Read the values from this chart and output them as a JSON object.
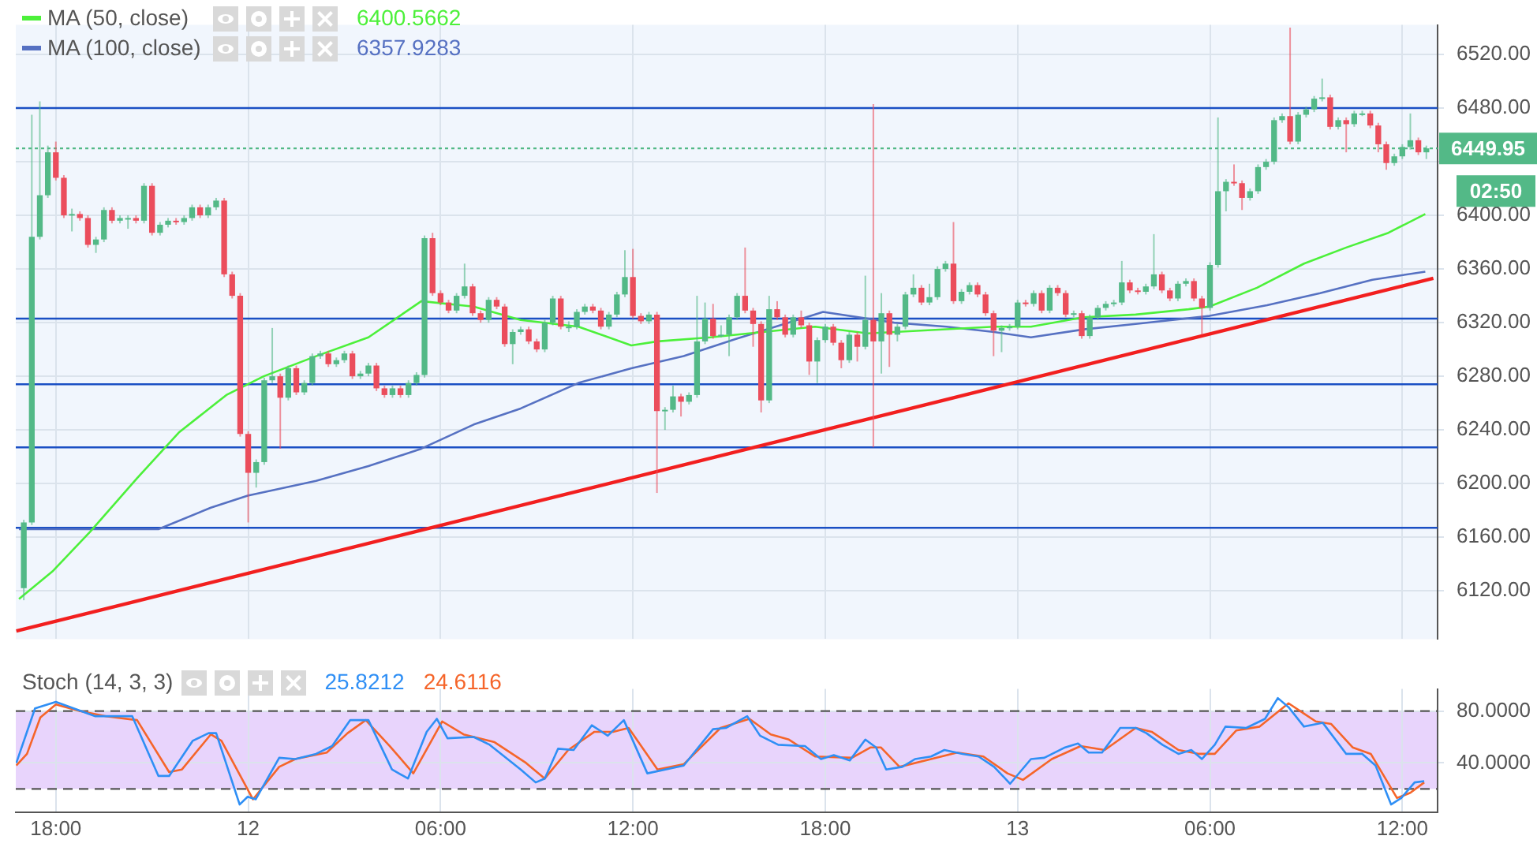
{
  "chart_data": [
    {
      "type": "candlestick",
      "x": [
        "--08-11T17:00",
        "--08-11T17:15",
        "--08-11T17:30",
        "--08-11T17:45",
        "--08-11T18:00",
        "--08-11T18:15",
        "--08-11T18:30",
        "--08-11T18:45",
        "--08-11T19:00",
        "--08-11T19:15",
        "--08-11T19:30",
        "--08-11T19:45",
        "--08-11T20:00",
        "--08-11T20:15",
        "--08-11T20:30",
        "--08-11T20:45",
        "--08-11T21:00",
        "--08-11T21:15",
        "--08-11T21:30",
        "--08-11T21:45",
        "--08-11T22:00",
        "--08-11T22:15",
        "--08-11T22:30",
        "--08-11T22:45",
        "--08-11T23:00",
        "--08-11T23:15",
        "--08-11T23:30",
        "--08-11T23:45",
        "--08-12T00:00",
        "--08-12T00:15",
        "--08-12T00:30",
        "--08-12T00:45",
        "--08-12T01:00",
        "--08-12T01:15",
        "--08-12T01:30",
        "--08-12T01:45",
        "--08-12T02:00",
        "--08-12T02:15",
        "--08-12T02:30",
        "--08-12T02:45",
        "--08-12T03:00",
        "--08-12T03:15",
        "--08-12T03:30",
        "--08-12T03:45",
        "--08-12T04:00",
        "--08-12T04:15",
        "--08-12T04:30",
        "--08-12T04:45",
        "--08-12T05:00",
        "--08-12T05:15",
        "--08-12T05:30",
        "--08-12T05:45",
        "--08-12T06:00",
        "--08-12T06:15",
        "--08-12T06:30",
        "--08-12T06:45",
        "--08-12T07:00",
        "--08-12T07:15",
        "--08-12T07:30",
        "--08-12T07:45",
        "--08-12T08:00",
        "--08-12T08:15",
        "--08-12T08:30",
        "--08-12T08:45",
        "--08-12T09:00",
        "--08-12T09:15",
        "--08-12T09:30",
        "--08-12T09:45",
        "--08-12T10:00",
        "--08-12T10:15",
        "--08-12T10:30",
        "--08-12T10:45",
        "--08-12T11:00",
        "--08-12T11:15",
        "--08-12T11:30",
        "--08-12T11:45",
        "--08-12T12:00",
        "--08-12T12:15",
        "--08-12T12:30",
        "--08-12T12:45",
        "--08-12T13:00",
        "--08-12T13:15",
        "--08-12T13:30",
        "--08-12T13:45",
        "--08-12T14:00",
        "--08-12T14:15",
        "--08-12T14:30",
        "--08-12T14:45",
        "--08-12T15:00",
        "--08-12T15:15",
        "--08-12T15:30",
        "--08-12T15:45",
        "--08-12T16:00",
        "--08-12T16:15",
        "--08-12T16:30",
        "--08-12T16:45",
        "--08-12T17:00",
        "--08-12T17:15",
        "--08-12T17:30",
        "--08-12T17:45",
        "--08-12T18:00",
        "--08-12T18:15",
        "--08-12T18:30",
        "--08-12T18:45",
        "--08-12T19:00",
        "--08-12T19:15",
        "--08-12T19:30",
        "--08-12T19:45",
        "--08-12T20:00",
        "--08-12T20:15",
        "--08-12T20:30",
        "--08-12T20:45",
        "--08-12T21:00",
        "--08-12T21:15",
        "--08-12T21:30",
        "--08-12T21:45",
        "--08-12T22:00",
        "--08-12T22:15",
        "--08-12T22:30",
        "--08-12T22:45",
        "--08-12T23:00",
        "--08-12T23:15",
        "--08-12T23:30",
        "--08-12T23:45",
        "--08-13T00:00",
        "--08-13T00:15",
        "--08-13T00:30",
        "--08-13T00:45",
        "--08-13T01:00",
        "--08-13T01:15",
        "--08-13T01:30",
        "--08-13T01:45",
        "--08-13T02:00",
        "--08-13T02:15",
        "--08-13T02:30",
        "--08-13T02:45",
        "--08-13T03:00",
        "--08-13T03:15",
        "--08-13T03:30",
        "--08-13T03:45",
        "--08-13T04:00",
        "--08-13T04:15",
        "--08-13T04:30",
        "--08-13T04:45",
        "--08-13T05:00",
        "--08-13T05:15",
        "--08-13T05:30",
        "--08-13T05:45",
        "--08-13T06:00",
        "--08-13T06:15",
        "--08-13T06:30",
        "--08-13T06:45",
        "--08-13T07:00",
        "--08-13T07:15",
        "--08-13T07:30",
        "--08-13T07:45",
        "--08-13T08:00",
        "--08-13T08:15",
        "--08-13T08:30",
        "--08-13T08:45",
        "--08-13T09:00",
        "--08-13T09:15",
        "--08-13T09:30",
        "--08-13T09:45",
        "--08-13T10:00",
        "--08-13T10:15",
        "--08-13T10:30",
        "--08-13T10:45",
        "--08-13T11:00",
        "--08-13T11:15",
        "--08-13T11:30",
        "--08-13T11:45",
        "--08-13T12:00",
        "--08-13T12:15",
        "--08-13T12:30",
        "--08-13T12:45"
      ],
      "ohlc": [
        [
          6122,
          6173,
          6113,
          6171
        ],
        [
          6171,
          6475,
          6169,
          6384
        ],
        [
          6384,
          6485,
          6382,
          6415
        ],
        [
          6415,
          6452,
          6413,
          6447
        ],
        [
          6447,
          6455,
          6426,
          6428
        ],
        [
          6428,
          6430,
          6398,
          6400
        ],
        [
          6400,
          6405,
          6388,
          6401
        ],
        [
          6401,
          6403,
          6396,
          6398
        ],
        [
          6398,
          6400,
          6376,
          6378
        ],
        [
          6378,
          6384,
          6372,
          6382
        ],
        [
          6382,
          6406,
          6380,
          6404
        ],
        [
          6404,
          6406,
          6394,
          6396
        ],
        [
          6396,
          6400,
          6394,
          6398
        ],
        [
          6398,
          6400,
          6390,
          6398
        ],
        [
          6398,
          6400,
          6394,
          6396
        ],
        [
          6396,
          6424,
          6394,
          6422
        ],
        [
          6422,
          6424,
          6385,
          6387
        ],
        [
          6387,
          6395,
          6385,
          6393
        ],
        [
          6393,
          6398,
          6391,
          6396
        ],
        [
          6396,
          6398,
          6393,
          6395
        ],
        [
          6395,
          6400,
          6393,
          6398
        ],
        [
          6398,
          6408,
          6396,
          6406
        ],
        [
          6406,
          6408,
          6398,
          6400
        ],
        [
          6400,
          6408,
          6398,
          6406
        ],
        [
          6406,
          6413,
          6404,
          6411
        ],
        [
          6411,
          6413,
          6354,
          6356
        ],
        [
          6356,
          6358,
          6338,
          6340
        ],
        [
          6340,
          6342,
          6235,
          6237
        ],
        [
          6237,
          6239,
          6171,
          6208
        ],
        [
          6208,
          6218,
          6197,
          6216
        ],
        [
          6216,
          6279,
          6214,
          6277
        ],
        [
          6277,
          6316,
          6275,
          6280
        ],
        [
          6280,
          6282,
          6226,
          6264
        ],
        [
          6264,
          6288,
          6262,
          6286
        ],
        [
          6286,
          6288,
          6266,
          6268
        ],
        [
          6268,
          6277,
          6266,
          6275
        ],
        [
          6275,
          6297,
          6273,
          6295
        ],
        [
          6295,
          6299,
          6293,
          6297
        ],
        [
          6297,
          6299,
          6287,
          6289
        ],
        [
          6289,
          6294,
          6287,
          6292
        ],
        [
          6292,
          6299,
          6290,
          6297
        ],
        [
          6297,
          6299,
          6278,
          6280
        ],
        [
          6280,
          6284,
          6278,
          6282
        ],
        [
          6282,
          6290,
          6280,
          6288
        ],
        [
          6288,
          6290,
          6269,
          6271
        ],
        [
          6271,
          6273,
          6264,
          6266
        ],
        [
          6266,
          6273,
          6264,
          6271
        ],
        [
          6271,
          6273,
          6264,
          6266
        ],
        [
          6266,
          6277,
          6264,
          6275
        ],
        [
          6275,
          6283,
          6273,
          6281
        ],
        [
          6281,
          6385,
          6279,
          6383
        ],
        [
          6383,
          6387,
          6340,
          6342
        ],
        [
          6342,
          6344,
          6333,
          6335
        ],
        [
          6335,
          6337,
          6327,
          6329
        ],
        [
          6329,
          6342,
          6327,
          6340
        ],
        [
          6340,
          6364,
          6338,
          6347
        ],
        [
          6347,
          6349,
          6325,
          6327
        ],
        [
          6327,
          6329,
          6320,
          6322
        ],
        [
          6322,
          6339,
          6320,
          6337
        ],
        [
          6337,
          6339,
          6330,
          6332
        ],
        [
          6332,
          6334,
          6302,
          6304
        ],
        [
          6304,
          6315,
          6289,
          6313
        ],
        [
          6313,
          6317,
          6311,
          6315
        ],
        [
          6315,
          6317,
          6304,
          6306
        ],
        [
          6306,
          6308,
          6298,
          6300
        ],
        [
          6300,
          6322,
          6298,
          6320
        ],
        [
          6320,
          6340,
          6318,
          6338
        ],
        [
          6338,
          6340,
          6315,
          6317
        ],
        [
          6317,
          6321,
          6313,
          6317
        ],
        [
          6317,
          6330,
          6315,
          6328
        ],
        [
          6328,
          6334,
          6326,
          6332
        ],
        [
          6332,
          6334,
          6327,
          6329
        ],
        [
          6329,
          6331,
          6315,
          6317
        ],
        [
          6317,
          6328,
          6315,
          6326
        ],
        [
          6326,
          6343,
          6324,
          6341
        ],
        [
          6341,
          6374,
          6339,
          6354
        ],
        [
          6354,
          6375,
          6323,
          6325
        ],
        [
          6325,
          6327,
          6319,
          6321
        ],
        [
          6321,
          6328,
          6319,
          6326
        ],
        [
          6326,
          6328,
          6193,
          6254
        ],
        [
          6254,
          6257,
          6240,
          6255
        ],
        [
          6255,
          6273,
          6253,
          6265
        ],
        [
          6265,
          6267,
          6250,
          6261
        ],
        [
          6261,
          6268,
          6259,
          6266
        ],
        [
          6266,
          6340,
          6264,
          6306
        ],
        [
          6306,
          6335,
          6304,
          6323
        ],
        [
          6323,
          6334,
          6308,
          6310
        ],
        [
          6310,
          6318,
          6309,
          6311
        ],
        [
          6311,
          6326,
          6295,
          6324
        ],
        [
          6324,
          6342,
          6322,
          6340
        ],
        [
          6340,
          6376,
          6327,
          6329
        ],
        [
          6329,
          6331,
          6302,
          6319
        ],
        [
          6319,
          6321,
          6253,
          6262
        ],
        [
          6262,
          6340,
          6260,
          6330
        ],
        [
          6330,
          6336,
          6322,
          6324
        ],
        [
          6324,
          6326,
          6309,
          6311
        ],
        [
          6311,
          6326,
          6309,
          6324
        ],
        [
          6324,
          6329,
          6316,
          6318
        ],
        [
          6318,
          6320,
          6281,
          6291
        ],
        [
          6291,
          6309,
          6275,
          6307
        ],
        [
          6307,
          6319,
          6305,
          6317
        ],
        [
          6317,
          6319,
          6303,
          6305
        ],
        [
          6305,
          6307,
          6286,
          6292
        ],
        [
          6292,
          6313,
          6290,
          6311
        ],
        [
          6311,
          6313,
          6291,
          6302
        ],
        [
          6302,
          6355,
          6300,
          6322
        ],
        [
          6322,
          6483,
          6227,
          6306
        ],
        [
          6306,
          6342,
          6282,
          6327
        ],
        [
          6327,
          6329,
          6287,
          6311
        ],
        [
          6311,
          6319,
          6306,
          6317
        ],
        [
          6317,
          6343,
          6315,
          6341
        ],
        [
          6341,
          6356,
          6339,
          6346
        ],
        [
          6346,
          6348,
          6333,
          6335
        ],
        [
          6335,
          6349,
          6333,
          6339
        ],
        [
          6339,
          6362,
          6337,
          6360
        ],
        [
          6360,
          6366,
          6358,
          6364
        ],
        [
          6364,
          6395,
          6334,
          6336
        ],
        [
          6336,
          6345,
          6334,
          6343
        ],
        [
          6343,
          6350,
          6341,
          6348
        ],
        [
          6348,
          6350,
          6339,
          6341
        ],
        [
          6341,
          6343,
          6325,
          6327
        ],
        [
          6327,
          6329,
          6295,
          6314
        ],
        [
          6314,
          6318,
          6298,
          6316
        ],
        [
          6316,
          6319,
          6314,
          6317
        ],
        [
          6317,
          6337,
          6315,
          6335
        ],
        [
          6335,
          6337,
          6332,
          6334
        ],
        [
          6334,
          6344,
          6332,
          6342
        ],
        [
          6342,
          6344,
          6327,
          6329
        ],
        [
          6329,
          6348,
          6327,
          6346
        ],
        [
          6346,
          6348,
          6340,
          6342
        ],
        [
          6342,
          6344,
          6324,
          6326
        ],
        [
          6326,
          6329,
          6324,
          6327
        ],
        [
          6327,
          6329,
          6308,
          6310
        ],
        [
          6310,
          6326,
          6308,
          6324
        ],
        [
          6324,
          6333,
          6322,
          6331
        ],
        [
          6331,
          6336,
          6329,
          6334
        ],
        [
          6334,
          6337,
          6332,
          6335
        ],
        [
          6335,
          6366,
          6333,
          6350
        ],
        [
          6350,
          6352,
          6342,
          6344
        ],
        [
          6344,
          6346,
          6341,
          6343
        ],
        [
          6343,
          6349,
          6341,
          6347
        ],
        [
          6347,
          6386,
          6345,
          6356
        ],
        [
          6356,
          6358,
          6342,
          6344
        ],
        [
          6344,
          6346,
          6336,
          6338
        ],
        [
          6338,
          6351,
          6336,
          6349
        ],
        [
          6349,
          6353,
          6347,
          6351
        ],
        [
          6351,
          6353,
          6336,
          6338
        ],
        [
          6338,
          6340,
          6311,
          6331
        ],
        [
          6331,
          6365,
          6329,
          6363
        ],
        [
          6363,
          6473,
          6361,
          6418
        ],
        [
          6418,
          6427,
          6403,
          6425
        ],
        [
          6425,
          6438,
          6422,
          6424
        ],
        [
          6424,
          6426,
          6404,
          6413
        ],
        [
          6413,
          6420,
          6411,
          6418
        ],
        [
          6418,
          6438,
          6416,
          6436
        ],
        [
          6436,
          6442,
          6434,
          6440
        ],
        [
          6440,
          6473,
          6438,
          6471
        ],
        [
          6471,
          6476,
          6469,
          6474
        ],
        [
          6474,
          6540,
          6453,
          6455
        ],
        [
          6455,
          6477,
          6453,
          6475
        ],
        [
          6475,
          6481,
          6473,
          6479
        ],
        [
          6479,
          6489,
          6477,
          6487
        ],
        [
          6487,
          6502,
          6485,
          6488
        ],
        [
          6488,
          6490,
          6464,
          6466
        ],
        [
          6466,
          6473,
          6464,
          6471
        ],
        [
          6471,
          6473,
          6447,
          6468
        ],
        [
          6468,
          6478,
          6466,
          6476
        ],
        [
          6476,
          6478,
          6474,
          6476
        ],
        [
          6476,
          6478,
          6465,
          6467
        ],
        [
          6467,
          6469,
          6447,
          6453
        ],
        [
          6453,
          6455,
          6434,
          6439
        ],
        [
          6439,
          6446,
          6437,
          6444
        ],
        [
          6444,
          6453,
          6442,
          6451
        ],
        [
          6451,
          6476,
          6449,
          6456
        ],
        [
          6456,
          6458,
          6445,
          6447
        ],
        [
          6447,
          6452,
          6442,
          6449.95
        ]
      ],
      "series": [
        {
          "type": "line",
          "name": "MA (50, close)",
          "color": "#4cf03a",
          "x": [
            "--08-11T16:51",
            "--08-11T17:55",
            "--08-11T19:04",
            "--08-11T20:32",
            "--08-11T21:50",
            "--08-11T23:19",
            "--08-12T00:29",
            "--08-12T02:07",
            "--08-12T03:45",
            "--08-12T05:24",
            "--08-12T07:02",
            "--08-12T08:30",
            "--08-12T10:18",
            "--08-12T11:57",
            "--08-12T12:46",
            "--08-12T14:25",
            "--08-12T16:03",
            "--08-12T17:41",
            "--08-12T19:20",
            "--08-12T20:58",
            "--08-12T23:16",
            "--08-13T00:25",
            "--08-13T02:04",
            "--08-13T03:41",
            "--08-13T05:20",
            "--08-13T05:59",
            "--08-13T07:28",
            "--08-13T08:56",
            "--08-13T10:15",
            "--08-13T11:34",
            "--08-13T12:43"
          ],
          "values": [
            6114,
            6135,
            6164,
            6204,
            6238,
            6266,
            6280,
            6295,
            6309,
            6336,
            6332,
            6322,
            6317,
            6303,
            6306,
            6309,
            6313,
            6317,
            6312,
            6314,
            6317,
            6317,
            6324,
            6326,
            6330,
            6332,
            6346,
            6364,
            6376,
            6387,
            6401
          ]
        },
        {
          "type": "line",
          "name": "MA (100, close)",
          "color": "#5671c2",
          "x": [
            "--08-11T16:51",
            "--08-11T21:12",
            "--08-11T22:50",
            "--08-11T23:59",
            "--08-12T02:07",
            "--08-12T03:45",
            "--08-12T05:24",
            "--08-12T07:02",
            "--08-12T08:30",
            "--08-12T10:18",
            "--08-12T11:57",
            "--08-12T13:35",
            "--08-12T15:14",
            "--08-12T16:52",
            "--08-12T17:56",
            "--08-12T20:09",
            "--08-12T21:47",
            "--08-12T23:16",
            "--08-13T00:25",
            "--08-13T02:04",
            "--08-13T03:41",
            "--08-13T05:59",
            "--08-13T07:47",
            "--08-13T09:26",
            "--08-13T11:04",
            "--08-13T12:43"
          ],
          "values": [
            6166,
            6166,
            6182,
            6191,
            6202,
            6213,
            6226,
            6244,
            6256,
            6275,
            6286,
            6295,
            6308,
            6320,
            6328,
            6320,
            6317,
            6313,
            6309,
            6315,
            6319,
            6325,
            6333,
            6342,
            6352,
            6358
          ]
        },
        {
          "type": "line",
          "color": "#f21f1f",
          "x": [
            "--08-11T16:46",
            "--08-13T12:58"
          ],
          "values": [
            6090,
            6353
          ]
        }
      ],
      "xlim": [
        "--08-11T16:45",
        "--08-13T13:06"
      ],
      "ylim": [
        6084,
        6542
      ],
      "xticks": [
        {
          "value": "--08-11T18:00",
          "label": null
        },
        {
          "value": "--08-12T00:00",
          "label": null
        },
        {
          "value": "--08-12T06:00",
          "label": null
        },
        {
          "value": "--08-12T12:00",
          "label": null
        },
        {
          "value": "--08-12T18:00",
          "label": null
        },
        {
          "value": "--08-13T00:00",
          "label": null
        },
        {
          "value": "--08-13T06:00",
          "label": null
        },
        {
          "value": "--08-13T12:00",
          "label": null
        }
      ],
      "yticks": [
        {
          "value": 6120,
          "label": "6120.00"
        },
        {
          "value": 6160,
          "label": "6160.00"
        },
        {
          "value": 6200,
          "label": "6200.00"
        },
        {
          "value": 6240,
          "label": "6240.00"
        },
        {
          "value": 6280,
          "label": "6280.00"
        },
        {
          "value": 6320,
          "label": "6320.00"
        },
        {
          "value": 6360,
          "label": "6360.00"
        },
        {
          "value": 6400,
          "label": "6400.00"
        },
        {
          "value": 6440,
          "label": null
        },
        {
          "value": 6480,
          "label": "6480.00"
        },
        {
          "value": 6520,
          "label": "6520.00"
        }
      ],
      "ref_lines": [
        {
          "axis": "y",
          "value": 6480,
          "color": "#1a4fc4"
        },
        {
          "axis": "y",
          "value": 6323,
          "color": "#1a4fc4"
        },
        {
          "axis": "y",
          "value": 6274,
          "color": "#1a4fc4"
        },
        {
          "axis": "y",
          "value": 6227,
          "color": "#1a4fc4"
        },
        {
          "axis": "y",
          "value": 6167,
          "color": "#1a4fc4"
        },
        {
          "axis": "y",
          "value": 6449.95,
          "label": "6449.95",
          "color": "#53b987",
          "line_style": "dotted"
        }
      ],
      "annotations": [
        "6400.5662",
        "6357.9283",
        "02:50"
      ],
      "legend": "top left",
      "grid": true,
      "tick_labels": "y",
      "marker": "none"
    },
    {
      "type": "line",
      "title": "Stoch (14, 3, 3)",
      "series": [
        {
          "color": "#2f8ff5",
          "x": [
            "--08-11T16:46",
            "--08-11T17:21",
            "--08-11T18:00",
            "--08-11T19:14",
            "--08-11T20:23",
            "--08-11T21:12",
            "--08-11T21:32",
            "--08-11T22:16",
            "--08-11T22:46",
            "--08-11T23:00",
            "--08-11T23:44",
            "--08-11T23:59",
            "--08-12T00:14",
            "--08-12T00:58",
            "--08-12T01:28",
            "--08-12T02:07",
            "--08-12T02:37",
            "--08-12T03:11",
            "--08-12T03:45",
            "--08-12T04:29",
            "--08-12T04:59",
            "--08-12T05:34",
            "--08-12T05:53",
            "--08-12T06:13",
            "--08-12T07:02",
            "--08-12T07:32",
            "--08-12T08:30",
            "--08-12T08:58",
            "--08-12T09:15",
            "--08-12T09:40",
            "--08-12T10:09",
            "--08-12T10:43",
            "--08-12T11:13",
            "--08-12T11:43",
            "--08-12T12:27",
            "--08-12T13:35",
            "--08-12T14:30",
            "--08-12T14:54",
            "--08-12T15:34",
            "--08-12T15:58",
            "--08-12T16:32",
            "--08-12T17:22",
            "--08-12T17:52",
            "--08-12T18:16",
            "--08-12T18:46",
            "--08-12T19:15",
            "--08-12T19:35",
            "--08-12T19:54",
            "--08-12T20:24",
            "--08-12T20:48",
            "--08-12T21:18",
            "--08-12T21:43",
            "--08-12T22:17",
            "--08-12T22:47",
            "--08-12T23:16",
            "--08-12T23:46",
            "--08-13T00:25",
            "--08-13T00:50",
            "--08-13T01:29",
            "--08-13T01:53",
            "--08-13T02:13",
            "--08-13T02:38",
            "--08-13T03:12",
            "--08-13T03:41",
            "--08-13T04:01",
            "--08-13T04:31",
            "--08-13T05:01",
            "--08-13T05:25",
            "--08-13T05:45",
            "--08-13T06:09",
            "--08-13T06:29",
            "--08-13T07:08",
            "--08-13T07:43",
            "--08-13T08:07",
            "--08-13T08:27",
            "--08-13T08:56",
            "--08-13T09:31",
            "--08-13T10:15",
            "--08-13T10:45",
            "--08-13T11:10",
            "--08-13T11:39",
            "--08-13T11:58",
            "--08-13T12:23",
            "--08-13T12:41"
          ],
          "values": [
            40,
            82,
            87,
            76,
            76,
            30,
            30,
            57,
            63,
            63,
            8,
            14,
            12,
            44,
            43,
            47,
            53,
            73,
            73,
            35,
            28,
            64,
            74,
            59,
            60,
            54,
            35,
            25,
            28,
            51,
            50,
            69,
            61,
            73,
            32,
            38,
            66,
            67,
            76,
            61,
            54,
            53,
            43,
            46,
            42,
            58,
            52,
            35,
            37,
            43,
            45,
            50,
            47,
            45,
            37,
            24,
            43,
            44,
            52,
            55,
            48,
            48,
            67,
            67,
            63,
            54,
            47,
            50,
            43,
            54,
            68,
            67,
            74,
            90,
            83,
            68,
            71,
            47,
            47,
            38,
            8,
            13,
            25,
            26
          ]
        },
        {
          "color": "#f5652a",
          "x": [
            "--08-11T16:46",
            "--08-11T17:06",
            "--08-11T17:31",
            "--08-11T18:00",
            "--08-11T18:44",
            "--08-11T19:34",
            "--08-11T20:32",
            "--08-11T21:32",
            "--08-11T21:56",
            "--08-11T22:50",
            "--08-11T23:10",
            "--08-12T00:09",
            "--08-12T00:58",
            "--08-12T01:28",
            "--08-12T02:27",
            "--08-12T03:06",
            "--08-12T03:40",
            "--08-12T04:25",
            "--08-12T05:09",
            "--08-12T06:03",
            "--08-12T06:43",
            "--08-12T07:41",
            "--08-12T08:40",
            "--08-12T09:15",
            "--08-12T09:59",
            "--08-12T10:48",
            "--08-12T11:23",
            "--08-12T11:52",
            "--08-12T12:46",
            "--08-12T13:35",
            "--08-12T14:44",
            "--08-12T15:38",
            "--08-12T16:18",
            "--08-12T16:52",
            "--08-12T17:41",
            "--08-12T18:50",
            "--08-12T19:25",
            "--08-12T19:44",
            "--08-12T20:19",
            "--08-12T21:18",
            "--08-12T22:07",
            "--08-12T22:56",
            "--08-12T23:41",
            "--08-13T00:10",
            "--08-13T01:04",
            "--08-13T01:58",
            "--08-13T02:43",
            "--08-13T03:41",
            "--08-13T04:11",
            "--08-13T05:01",
            "--08-13T05:40",
            "--08-13T06:09",
            "--08-13T06:49",
            "--08-13T07:33",
            "--08-13T08:27",
            "--08-13T08:56",
            "--08-13T09:18",
            "--08-13T09:47",
            "--08-13T10:27",
            "--08-13T11:01",
            "--08-13T11:50",
            "--08-13T12:15",
            "--08-13T12:41"
          ],
          "values": [
            38,
            47,
            75,
            85,
            80,
            76,
            73,
            33,
            35,
            62,
            57,
            12,
            37,
            43,
            48,
            63,
            73,
            53,
            32,
            72,
            62,
            56,
            40,
            28,
            50,
            64,
            64,
            67,
            35,
            39,
            67,
            74,
            62,
            58,
            45,
            44,
            52,
            52,
            37,
            43,
            48,
            45,
            32,
            27,
            43,
            53,
            50,
            67,
            64,
            50,
            47,
            47,
            65,
            68,
            86,
            78,
            72,
            70,
            52,
            47,
            13,
            17,
            25
          ]
        }
      ],
      "annotations": [
        "25.8212",
        "24.6116"
      ],
      "xlim": [
        "--08-11T16:45",
        "--08-13T13:06"
      ],
      "ylim": [
        2,
        97
      ],
      "xticks": [
        {
          "value": "--08-11T18:00",
          "label": "18:00"
        },
        {
          "value": "--08-12T00:00",
          "label": "12"
        },
        {
          "value": "--08-12T06:00",
          "label": "06:00"
        },
        {
          "value": "--08-12T12:00",
          "label": "12:00"
        },
        {
          "value": "--08-12T18:00",
          "label": "18:00"
        },
        {
          "value": "--08-13T00:00",
          "label": "13"
        },
        {
          "value": "--08-13T06:00",
          "label": "06:00"
        },
        {
          "value": "--08-13T12:00",
          "label": "12:00"
        }
      ],
      "yticks": [
        {
          "value": 40,
          "label": "40.0000"
        },
        {
          "value": 80,
          "label": "80.0000"
        }
      ],
      "bands": [
        {
          "axis": "y",
          "from": 20,
          "to": 80,
          "color": "#e8d4fc"
        }
      ],
      "ref_lines": [
        {
          "axis": "y",
          "value": 80,
          "color": "#555555",
          "line_style": "dashed"
        },
        {
          "axis": "y",
          "value": 20,
          "color": "#555555",
          "line_style": "dashed"
        }
      ],
      "grid": true,
      "marker": "none"
    }
  ]
}
